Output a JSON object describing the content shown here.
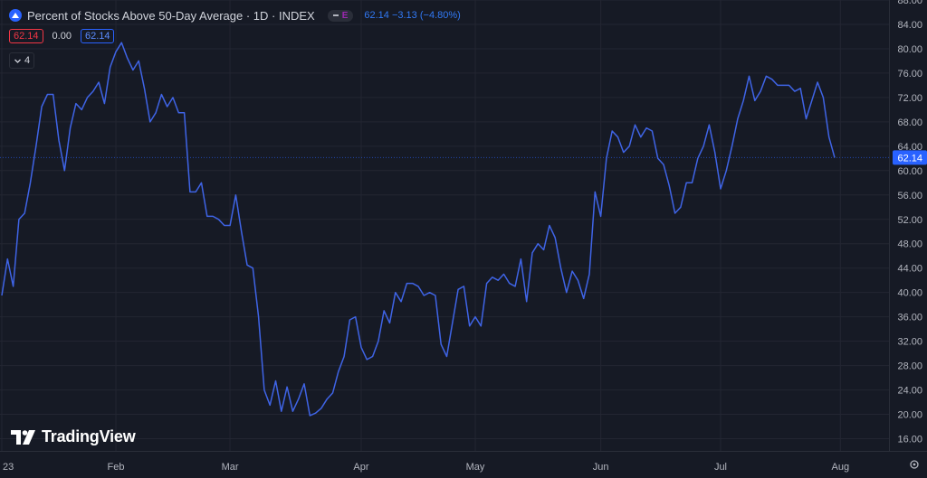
{
  "header": {
    "title": "Percent of Stocks Above 50-Day Average · 1D · INDEX",
    "badge_letter": "E",
    "last": "62.14",
    "change": "−3.13",
    "change_pct": "(−4.80%)",
    "box_red": "62.14",
    "box_plain": "0.00",
    "box_blue": "62.14",
    "indicator_count": "4"
  },
  "branding": {
    "logo_text": "TradingView"
  },
  "colors": {
    "line": "#3f64e6",
    "bg": "#161a25",
    "grid": "#232632",
    "axis_text": "#b2b5be",
    "price_label": "#2962ff"
  },
  "chart_data": {
    "type": "line",
    "title": "Percent of Stocks Above 50-Day Average",
    "interval": "1D",
    "ylim": [
      14,
      88
    ],
    "y_ticks": [
      16,
      20,
      24,
      28,
      32,
      36,
      40,
      44,
      48,
      52,
      56,
      60,
      64,
      68,
      72,
      76,
      80,
      84,
      88
    ],
    "y_tick_labels": [
      "16.00",
      "20.00",
      "24.00",
      "28.00",
      "32.00",
      "36.00",
      "40.00",
      "44.00",
      "48.00",
      "52.00",
      "56.00",
      "60.00",
      "64.00",
      "68.00",
      "72.00",
      "76.00",
      "80.00",
      "84.00",
      "88.00"
    ],
    "x_tick_labels": [
      {
        "label": "23",
        "index": 0
      },
      {
        "label": "Feb",
        "index": 20
      },
      {
        "label": "Mar",
        "index": 40
      },
      {
        "label": "Apr",
        "index": 63
      },
      {
        "label": "May",
        "index": 83
      },
      {
        "label": "Jun",
        "index": 105
      },
      {
        "label": "Jul",
        "index": 126
      },
      {
        "label": "Aug",
        "index": 147
      }
    ],
    "last_value_label": "62.14",
    "grid": true,
    "series": [
      {
        "values": [
          39.5,
          45.5,
          41,
          52,
          53,
          58,
          64,
          70.5,
          72.5,
          72.5,
          65,
          60,
          67,
          71,
          70,
          72,
          73,
          74.5,
          71,
          77,
          79.5,
          81,
          78.5,
          76.5,
          78,
          73.5,
          68,
          69.5,
          72.5,
          70.5,
          72,
          69.5,
          69.5,
          56.5,
          56.5,
          58,
          52.5,
          52.5,
          52,
          51,
          51,
          56,
          50,
          44.5,
          44,
          36,
          24,
          21.5,
          25.5,
          20.5,
          24.5,
          20.5,
          22.5,
          25,
          19.8,
          20.2,
          21,
          22.5,
          23.5,
          27,
          29.5,
          35.5,
          36,
          31,
          29,
          29.5,
          32,
          37,
          35,
          40,
          38.5,
          41.5,
          41.5,
          41,
          39.5,
          40,
          39.5,
          31.5,
          29.5,
          35,
          40.5,
          41,
          34.5,
          36,
          34.5,
          41.5,
          42.5,
          42,
          43,
          41.5,
          41,
          45.5,
          38.5,
          46.5,
          48,
          47,
          51,
          49,
          44,
          40,
          43.5,
          42,
          39,
          43,
          56.5,
          52.5,
          62,
          66.5,
          65.5,
          63,
          64,
          67.5,
          65.5,
          67,
          66.5,
          62,
          61,
          57.5,
          53,
          54,
          58,
          58,
          62,
          64,
          67.5,
          63,
          57,
          60,
          64,
          68.5,
          71.5,
          75.5,
          71.5,
          73,
          75.5,
          75,
          74,
          74,
          74,
          73,
          73.5,
          68.5,
          71.5,
          74.5,
          72,
          65.5,
          62.14
        ]
      }
    ]
  }
}
